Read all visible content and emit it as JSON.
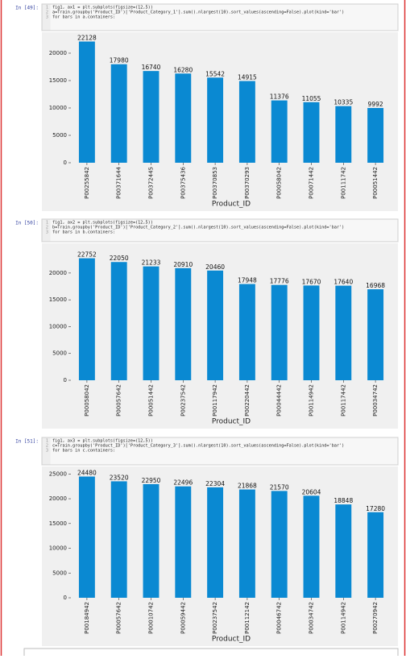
{
  "cells": [
    {
      "prompt": "In [49]:",
      "code": [
        {
          "n": "1",
          "text": "fig1, ax1 = plt.subplots(figsize=(12,5))"
        },
        {
          "n": "2",
          "text": "a=Train.groupby('Product_ID')['Product_Category_1'].sum().nlargest(10).sort_values(ascending=False).plot(kind='bar')"
        },
        {
          "n": "3",
          "text": "for bars in a.containers:"
        }
      ]
    },
    {
      "prompt": "In [50]:",
      "code": [
        {
          "n": "1",
          "text": "fig1, ax2 = plt.subplots(figsize=(12,5))"
        },
        {
          "n": "2",
          "text": "b=Train.groupby('Product_ID')['Product_Category_2'].sum().nlargest(10).sort_values(ascending=False).plot(kind='bar')"
        },
        {
          "n": "3",
          "text": "for bars in b.containers:"
        }
      ]
    },
    {
      "prompt": "In [51]:",
      "code": [
        {
          "n": "1",
          "text": "fig1, ax3 = plt.subplots(figsize=(12,5))"
        },
        {
          "n": "2",
          "text": "c=Train.groupby('Product_ID')['Product_Category_3'].sum().nlargest(10).sort_values(ascending=False).plot(kind='bar')"
        },
        {
          "n": "3",
          "text": "for bars in c.containers:"
        }
      ]
    }
  ],
  "chart_data": [
    {
      "type": "bar",
      "x_label": "Product_ID",
      "color": "#0a89d2",
      "categories": [
        "P00255842",
        "P00371644",
        "P00372445",
        "P00375436",
        "P00370853",
        "P00370293",
        "P00058042",
        "P00071442",
        "P00111742",
        "P00051442"
      ],
      "values": [
        22128,
        17980,
        16740,
        16280,
        15542,
        14915,
        11376,
        11055,
        10335,
        9992
      ],
      "ylim": [
        0,
        23234
      ],
      "yticks": [
        0,
        5000,
        10000,
        15000,
        20000
      ]
    },
    {
      "type": "bar",
      "x_label": "Product_ID",
      "color": "#0a89d2",
      "categories": [
        "P00058042",
        "P00057642",
        "P00051442",
        "P00237542",
        "P00117942",
        "P00220442",
        "P00044442",
        "P00114942",
        "P00117442",
        "P00034742"
      ],
      "values": [
        22752,
        22050,
        21233,
        20910,
        20460,
        17948,
        17776,
        17670,
        17640,
        16968
      ],
      "ylim": [
        0,
        23890
      ],
      "yticks": [
        0,
        5000,
        10000,
        15000,
        20000
      ]
    },
    {
      "type": "bar",
      "x_label": "Product_ID",
      "color": "#0a89d2",
      "categories": [
        "P00184942",
        "P00057642",
        "P00010742",
        "P00059442",
        "P00237542",
        "P00112142",
        "P00046742",
        "P00034742",
        "P00114942",
        "P00270942"
      ],
      "values": [
        24480,
        23520,
        22950,
        22496,
        22304,
        21868,
        21570,
        20604,
        18848,
        17280
      ],
      "ylim": [
        0,
        25704
      ],
      "yticks": [
        0,
        5000,
        10000,
        15000,
        20000,
        25000
      ]
    }
  ]
}
